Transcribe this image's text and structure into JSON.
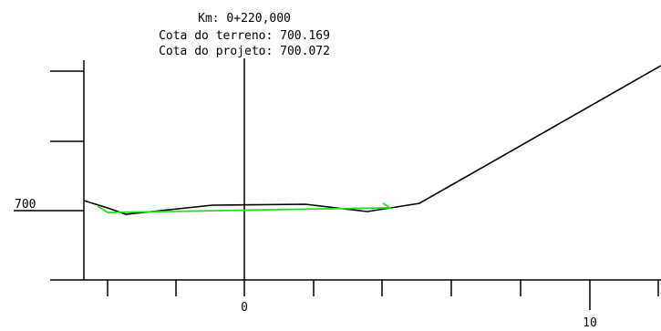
{
  "header": {
    "km": "Km: 0+220,000",
    "cota_terreno": "Cota do terreno: 700.169",
    "cota_projeto": "Cota do projeto: 700.072"
  },
  "axes": {
    "y_label": "700",
    "x_label_center": "0",
    "x_label_right": "10"
  },
  "colors": {
    "terrain": "#000000",
    "project": "#22dd22",
    "background": "#ffffff"
  }
}
